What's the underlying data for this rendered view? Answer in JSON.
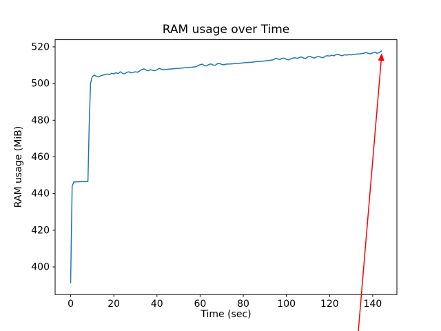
{
  "chart_data": {
    "type": "line",
    "title": "RAM usage over Time",
    "xlabel": "Time (sec)",
    "ylabel": "RAM usage (MiB)",
    "xlim": [
      -7.2,
      151.2
    ],
    "ylim": [
      384.9,
      523.9
    ],
    "xticks": [
      0,
      20,
      40,
      60,
      80,
      100,
      120,
      140
    ],
    "yticks": [
      400,
      420,
      440,
      460,
      480,
      500,
      520
    ],
    "grid": false,
    "legend": null,
    "series": [
      {
        "name": "RAM usage",
        "color": "#1f77b4",
        "points": [
          [
            0,
            391.2
          ],
          [
            0.7,
            444.0
          ],
          [
            1.5,
            446.4
          ],
          [
            3,
            446.4
          ],
          [
            5,
            446.5
          ],
          [
            7,
            446.5
          ],
          [
            8,
            446.6
          ],
          [
            8.6,
            478.0
          ],
          [
            9.2,
            500.0
          ],
          [
            10,
            503.8
          ],
          [
            11,
            504.6
          ],
          [
            12,
            503.9
          ],
          [
            13,
            503.6
          ],
          [
            14,
            504.3
          ],
          [
            15,
            504.6
          ],
          [
            16,
            504.9
          ],
          [
            17,
            505.2
          ],
          [
            18,
            504.9
          ],
          [
            19,
            505.6
          ],
          [
            20,
            505.3
          ],
          [
            21,
            505.9
          ],
          [
            22,
            505.4
          ],
          [
            23,
            506.4
          ],
          [
            24,
            505.6
          ],
          [
            25,
            505.2
          ],
          [
            26,
            506.1
          ],
          [
            27,
            506.4
          ],
          [
            28,
            505.8
          ],
          [
            29,
            506.1
          ],
          [
            30,
            506.4
          ],
          [
            31,
            506.2
          ],
          [
            32,
            506.9
          ],
          [
            33,
            507.6
          ],
          [
            34,
            508.0
          ],
          [
            35,
            507.3
          ],
          [
            36,
            507.0
          ],
          [
            37,
            507.5
          ],
          [
            38,
            507.2
          ],
          [
            39,
            507.0
          ],
          [
            40,
            507.5
          ],
          [
            41,
            508.3
          ],
          [
            42,
            507.8
          ],
          [
            43,
            507.5
          ],
          [
            44,
            507.7
          ],
          [
            46,
            507.9
          ],
          [
            48,
            508.1
          ],
          [
            50,
            508.3
          ],
          [
            52,
            508.5
          ],
          [
            54,
            508.7
          ],
          [
            56,
            508.9
          ],
          [
            58,
            509.2
          ],
          [
            60,
            510.3
          ],
          [
            61,
            510.6
          ],
          [
            62,
            509.8
          ],
          [
            63,
            509.6
          ],
          [
            64,
            510.4
          ],
          [
            65,
            510.7
          ],
          [
            66,
            510.1
          ],
          [
            67,
            509.9
          ],
          [
            68,
            510.8
          ],
          [
            69,
            511.0
          ],
          [
            70,
            510.4
          ],
          [
            71,
            510.2
          ],
          [
            72,
            510.6
          ],
          [
            74,
            510.7
          ],
          [
            76,
            510.9
          ],
          [
            78,
            511.0
          ],
          [
            80,
            511.3
          ],
          [
            82,
            511.5
          ],
          [
            84,
            511.6
          ],
          [
            86,
            512.0
          ],
          [
            88,
            512.1
          ],
          [
            90,
            512.3
          ],
          [
            92,
            512.6
          ],
          [
            94,
            513.0
          ],
          [
            95,
            513.8
          ],
          [
            96,
            513.4
          ],
          [
            97,
            513.1
          ],
          [
            98,
            513.7
          ],
          [
            99,
            513.9
          ],
          [
            100,
            513.2
          ],
          [
            101,
            512.9
          ],
          [
            102,
            513.5
          ],
          [
            103,
            513.9
          ],
          [
            104,
            514.1
          ],
          [
            105,
            513.7
          ],
          [
            106,
            514.2
          ],
          [
            107,
            514.5
          ],
          [
            108,
            513.9
          ],
          [
            109,
            513.7
          ],
          [
            110,
            514.6
          ],
          [
            111,
            514.8
          ],
          [
            112,
            514.2
          ],
          [
            113,
            513.9
          ],
          [
            114,
            514.5
          ],
          [
            115,
            514.8
          ],
          [
            116,
            514.3
          ],
          [
            117,
            514.1
          ],
          [
            118,
            514.9
          ],
          [
            119,
            515.2
          ],
          [
            120,
            515.0
          ],
          [
            121,
            515.4
          ],
          [
            122,
            515.1
          ],
          [
            123,
            515.8
          ],
          [
            124,
            516.0
          ],
          [
            125,
            515.4
          ],
          [
            126,
            515.2
          ],
          [
            127,
            515.7
          ],
          [
            128,
            515.5
          ],
          [
            129,
            515.8
          ],
          [
            130,
            515.6
          ],
          [
            131,
            515.9
          ],
          [
            132,
            516.0
          ],
          [
            133,
            516.1
          ],
          [
            134,
            516.2
          ],
          [
            135,
            516.3
          ],
          [
            136,
            516.6
          ],
          [
            137,
            516.9
          ],
          [
            138,
            516.4
          ],
          [
            139,
            516.2
          ],
          [
            140,
            516.7
          ],
          [
            141,
            517.1
          ],
          [
            142,
            516.5
          ],
          [
            143,
            516.9
          ],
          [
            144,
            517.7
          ]
        ]
      }
    ],
    "annotations": [
      {
        "type": "arrow",
        "color": "#ff0000",
        "tail": [
          133.3,
          364.8
        ],
        "tip": [
          144.2,
          516.6
        ]
      }
    ]
  },
  "figure": {
    "background": "#ffffff",
    "axes_color": "#000000",
    "tick_color": "#000000"
  }
}
